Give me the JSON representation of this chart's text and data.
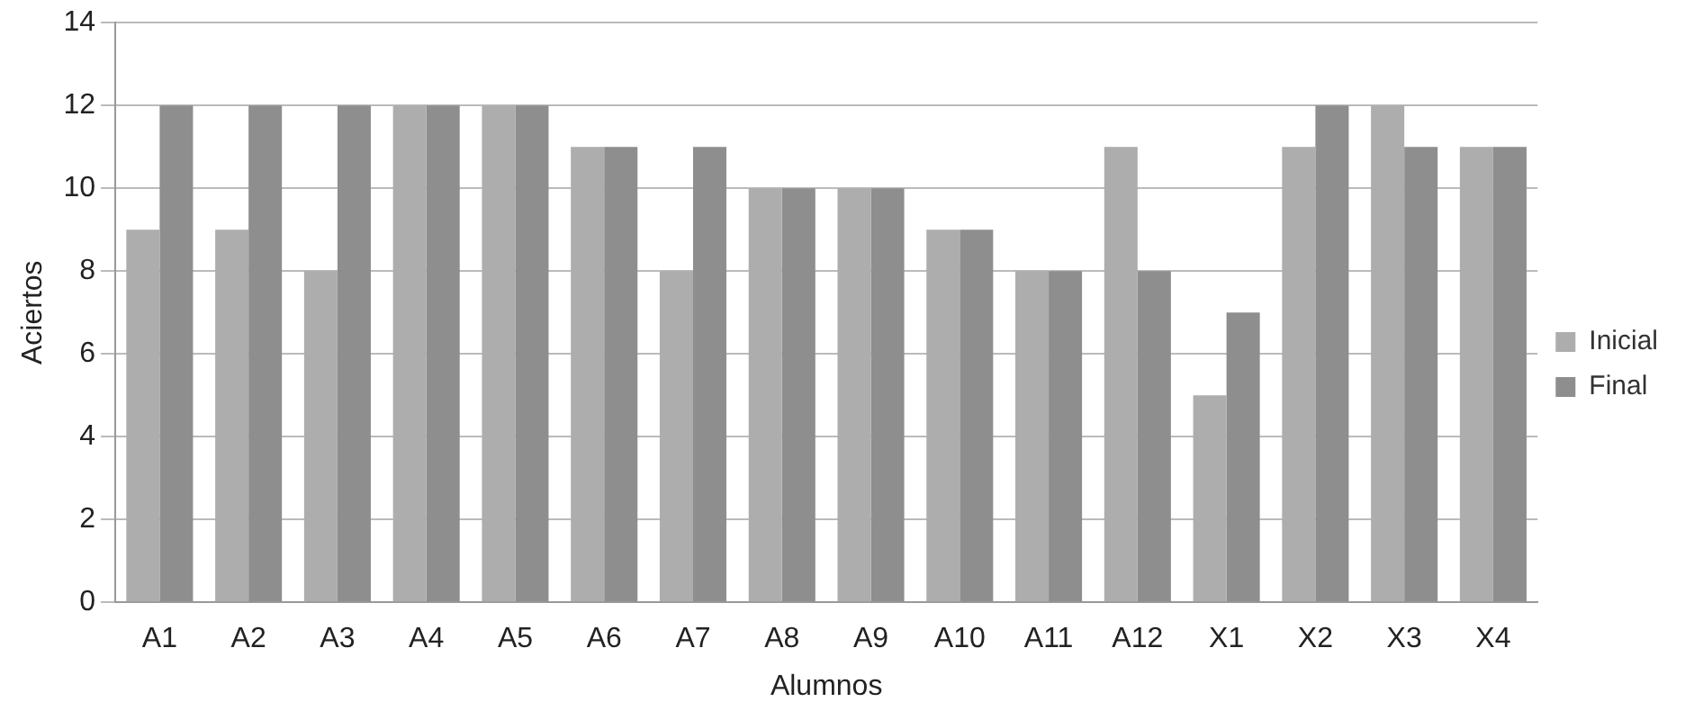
{
  "chart_data": {
    "type": "bar",
    "xlabel": "Alumnos",
    "ylabel": "Aciertos",
    "categories": [
      "A1",
      "A2",
      "A3",
      "A4",
      "A5",
      "A6",
      "A7",
      "A8",
      "A9",
      "A10",
      "A11",
      "A12",
      "X1",
      "X2",
      "X3",
      "X4"
    ],
    "series": [
      {
        "name": "Inicial",
        "color": "#adadad",
        "values": [
          9,
          9,
          8,
          12,
          12,
          11,
          8,
          10,
          10,
          9,
          8,
          11,
          5,
          11,
          12,
          11
        ]
      },
      {
        "name": "Final",
        "color": "#8e8e8e",
        "values": [
          12,
          12,
          12,
          12,
          12,
          11,
          11,
          10,
          10,
          9,
          8,
          8,
          7,
          12,
          11,
          11
        ]
      }
    ],
    "ylim": [
      0,
      14
    ],
    "yticks": [
      0,
      2,
      4,
      6,
      8,
      10,
      12,
      14
    ],
    "grid": "y",
    "legend": "right"
  }
}
